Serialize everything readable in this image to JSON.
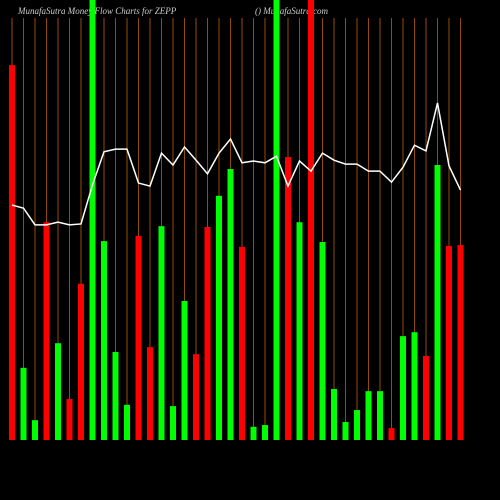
{
  "chart_data": {
    "type": "bar",
    "title": "MunafaSutra  Money Flow  Charts for ZEPP",
    "subtitle": "() MunafaSutra.com",
    "categories": [
      null,
      null,
      null,
      null,
      null,
      null,
      null,
      null,
      null,
      null,
      null,
      null,
      null,
      null,
      null,
      null,
      null,
      null,
      null,
      null,
      null,
      null,
      null,
      null,
      null,
      null,
      null,
      null,
      null,
      null,
      null,
      null,
      null,
      null,
      null,
      null,
      null,
      null,
      null,
      null
    ],
    "ylim": [
      0,
      100
    ],
    "grid": true,
    "grid_color": "#b8600a",
    "series": [
      {
        "type": "bar",
        "values": [
          85.2,
          16.4,
          4.5,
          49.5,
          22,
          9.3,
          35.5,
          100,
          45.2,
          20,
          8,
          46.4,
          21.1,
          48.6,
          7.7,
          31.6,
          19.5,
          48.4,
          55.5,
          61.6,
          43.9,
          3,
          3.4,
          100,
          64.3,
          49.5,
          100,
          45,
          11.6,
          4.1,
          6.8,
          11.1,
          11.1,
          2.7,
          23.6,
          24.5,
          19.1,
          62.5,
          44.1,
          44.3
        ],
        "colors": [
          "#ff0000",
          "#00ff00",
          "#00ff00",
          "#ff0000",
          "#00ff00",
          "#ff0000",
          "#ff0000",
          "#00ff00",
          "#00ff00",
          "#00ff00",
          "#00ff00",
          "#ff0000",
          "#ff0000",
          "#00ff00",
          "#00ff00",
          "#00ff00",
          "#ff0000",
          "#ff0000",
          "#00ff00",
          "#00ff00",
          "#ff0000",
          "#00ff00",
          "#00ff00",
          "#00ff00",
          "#ff0000",
          "#00ff00",
          "#ff0000",
          "#00ff00",
          "#00ff00",
          "#00ff00",
          "#00ff00",
          "#00ff00",
          "#00ff00",
          "#ff0000",
          "#00ff00",
          "#00ff00",
          "#ff0000",
          "#00ff00",
          "#ff0000",
          "#ff0000"
        ]
      },
      {
        "type": "line",
        "color": "#ffffff",
        "values": [
          53.4,
          52.7,
          48.9,
          48.9,
          49.5,
          48.9,
          49.1,
          58,
          65.5,
          66.1,
          66.1,
          58.4,
          57.7,
          65.2,
          62.5,
          66.6,
          63.6,
          60.5,
          65.2,
          68.4,
          63,
          63.4,
          63,
          64.5,
          57.7,
          63.4,
          61.1,
          65.2,
          63.6,
          62.7,
          62.7,
          61.1,
          61.1,
          58.6,
          62,
          67,
          65.7,
          76.6,
          62.3,
          56.8
        ]
      }
    ]
  }
}
